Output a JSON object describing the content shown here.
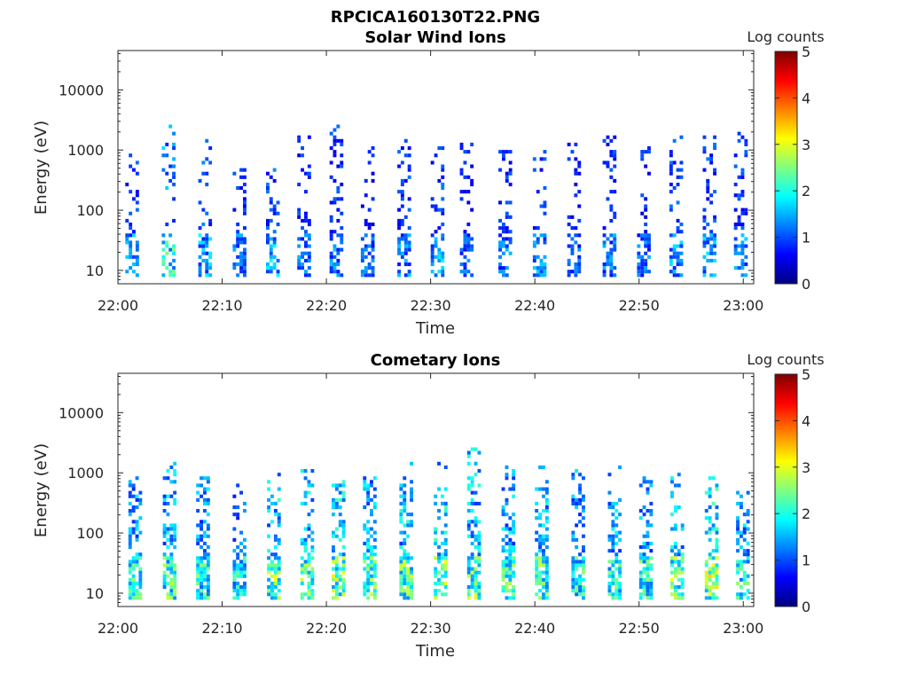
{
  "figure_title": "RPCICA160130T22.PNG",
  "colorbar": {
    "label": "Log counts",
    "ticks": [
      "0",
      "1",
      "2",
      "3",
      "4",
      "5"
    ],
    "range": [
      0,
      5
    ],
    "colormap": "jet"
  },
  "chart_data": [
    {
      "type": "heatmap",
      "title": "Solar Wind Ions",
      "xlabel": "Time",
      "ylabel": "Energy (eV)",
      "x_ticks": [
        "22:00",
        "22:10",
        "22:20",
        "22:30",
        "22:40",
        "22:50",
        "23:00"
      ],
      "y_ticks": [
        "10",
        "100",
        "1000",
        "10000"
      ],
      "y_scale": "log",
      "ylim": [
        6,
        45000
      ],
      "xlim_minutes": [
        0,
        61
      ],
      "color_range": [
        0,
        5
      ],
      "bursts": [
        {
          "t": 1.2,
          "c": 1.5,
          "top": 900
        },
        {
          "t": 4.7,
          "c": 2.2,
          "top": 2500
        },
        {
          "t": 8.2,
          "c": 1.6,
          "top": 1500
        },
        {
          "t": 11.5,
          "c": 1.3,
          "top": 700
        },
        {
          "t": 14.7,
          "c": 1.7,
          "top": 500
        },
        {
          "t": 17.7,
          "c": 1.3,
          "top": 1800
        },
        {
          "t": 20.8,
          "c": 1.4,
          "top": 2500
        },
        {
          "t": 23.8,
          "c": 1.2,
          "top": 1200
        },
        {
          "t": 27.3,
          "c": 1.4,
          "top": 1800
        },
        {
          "t": 30.5,
          "c": 1.6,
          "top": 1200
        },
        {
          "t": 33.3,
          "c": 1.2,
          "top": 1300
        },
        {
          "t": 37.0,
          "c": 1.3,
          "top": 1100
        },
        {
          "t": 40.3,
          "c": 1.4,
          "top": 1000
        },
        {
          "t": 43.6,
          "c": 1.2,
          "top": 1900
        },
        {
          "t": 47.0,
          "c": 1.3,
          "top": 2400
        },
        {
          "t": 50.3,
          "c": 1.3,
          "top": 1200
        },
        {
          "t": 53.4,
          "c": 1.5,
          "top": 2000
        },
        {
          "t": 56.6,
          "c": 1.5,
          "top": 1700
        },
        {
          "t": 59.6,
          "c": 1.4,
          "top": 2000
        }
      ]
    },
    {
      "type": "heatmap",
      "title": "Cometary Ions",
      "xlabel": "Time",
      "ylabel": "Energy (eV)",
      "x_ticks": [
        "22:00",
        "22:10",
        "22:20",
        "22:30",
        "22:40",
        "22:50",
        "23:00"
      ],
      "y_ticks": [
        "10",
        "100",
        "1000",
        "10000"
      ],
      "y_scale": "log",
      "ylim": [
        6,
        45000
      ],
      "xlim_minutes": [
        0,
        61
      ],
      "color_range": [
        0,
        5
      ],
      "bursts": [
        {
          "t": 1.5,
          "c": 2.2,
          "top": 900
        },
        {
          "t": 4.8,
          "c": 2.4,
          "top": 1500
        },
        {
          "t": 8.0,
          "c": 2.2,
          "top": 900
        },
        {
          "t": 11.5,
          "c": 2.0,
          "top": 700
        },
        {
          "t": 14.8,
          "c": 2.6,
          "top": 1000
        },
        {
          "t": 18.0,
          "c": 2.5,
          "top": 1200
        },
        {
          "t": 21.0,
          "c": 2.7,
          "top": 900
        },
        {
          "t": 24.0,
          "c": 2.4,
          "top": 900
        },
        {
          "t": 27.5,
          "c": 2.5,
          "top": 1500
        },
        {
          "t": 30.8,
          "c": 2.7,
          "top": 1700
        },
        {
          "t": 34.0,
          "c": 2.5,
          "top": 2500
        },
        {
          "t": 37.3,
          "c": 2.3,
          "top": 1300
        },
        {
          "t": 40.5,
          "c": 2.4,
          "top": 1400
        },
        {
          "t": 44.0,
          "c": 2.2,
          "top": 1100
        },
        {
          "t": 47.5,
          "c": 2.3,
          "top": 1300
        },
        {
          "t": 50.5,
          "c": 2.2,
          "top": 900
        },
        {
          "t": 53.5,
          "c": 2.6,
          "top": 1000
        },
        {
          "t": 56.8,
          "c": 2.8,
          "top": 900
        },
        {
          "t": 59.8,
          "c": 2.2,
          "top": 600
        }
      ]
    }
  ]
}
